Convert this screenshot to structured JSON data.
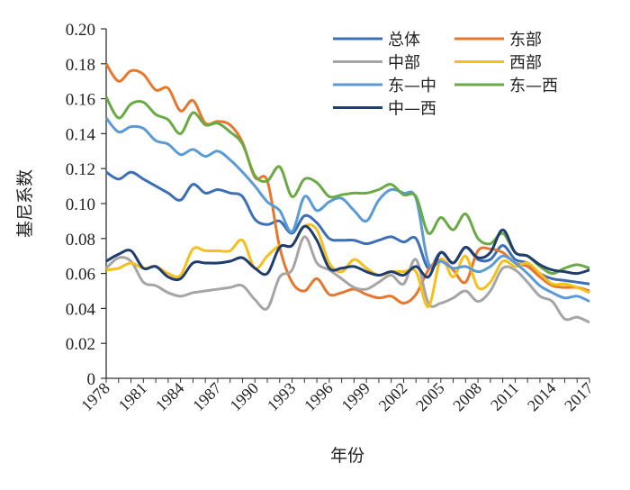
{
  "chart_data": {
    "type": "line",
    "title": "",
    "xlabel": "年份",
    "ylabel": "基尼系数",
    "ylim": [
      0,
      0.2
    ],
    "yticks": [
      "0",
      "0.02",
      "0.04",
      "0.06",
      "0.08",
      "0.10",
      "0.12",
      "0.14",
      "0.16",
      "0.18",
      "0.20"
    ],
    "xtick_labels": [
      "1978",
      "1981",
      "1984",
      "1987",
      "1990",
      "1993",
      "1996",
      "1999",
      "2002",
      "2005",
      "2008",
      "2011",
      "2014",
      "2017"
    ],
    "x": [
      1978,
      1979,
      1980,
      1981,
      1982,
      1983,
      1984,
      1985,
      1986,
      1987,
      1988,
      1989,
      1990,
      1991,
      1992,
      1993,
      1994,
      1995,
      1996,
      1997,
      1998,
      1999,
      2000,
      2001,
      2002,
      2003,
      2004,
      2005,
      2006,
      2007,
      2008,
      2009,
      2010,
      2011,
      2012,
      2013,
      2014,
      2015,
      2016,
      2017
    ],
    "legend_position": "top-right",
    "series": [
      {
        "name": "总体",
        "color": "#3d6fb6",
        "values": [
          0.118,
          0.114,
          0.118,
          0.114,
          0.11,
          0.106,
          0.102,
          0.111,
          0.106,
          0.108,
          0.106,
          0.104,
          0.091,
          0.088,
          0.09,
          0.083,
          0.093,
          0.089,
          0.08,
          0.079,
          0.079,
          0.077,
          0.079,
          0.081,
          0.078,
          0.08,
          0.063,
          0.072,
          0.066,
          0.075,
          0.068,
          0.068,
          0.076,
          0.068,
          0.066,
          0.06,
          0.057,
          0.056,
          0.055,
          0.054
        ]
      },
      {
        "name": "东部",
        "color": "#e8772e",
        "values": [
          0.18,
          0.17,
          0.176,
          0.174,
          0.165,
          0.166,
          0.153,
          0.159,
          0.146,
          0.147,
          0.145,
          0.135,
          0.115,
          0.113,
          0.075,
          0.055,
          0.05,
          0.057,
          0.048,
          0.049,
          0.051,
          0.048,
          0.046,
          0.047,
          0.043,
          0.048,
          0.062,
          0.068,
          0.062,
          0.055,
          0.073,
          0.074,
          0.072,
          0.066,
          0.064,
          0.058,
          0.053,
          0.052,
          0.052,
          0.05
        ]
      },
      {
        "name": "中部",
        "color": "#a5a5a5",
        "values": [
          0.063,
          0.069,
          0.067,
          0.055,
          0.053,
          0.049,
          0.047,
          0.049,
          0.05,
          0.051,
          0.052,
          0.053,
          0.045,
          0.04,
          0.058,
          0.062,
          0.081,
          0.066,
          0.062,
          0.057,
          0.052,
          0.051,
          0.055,
          0.059,
          0.054,
          0.068,
          0.043,
          0.043,
          0.046,
          0.05,
          0.044,
          0.05,
          0.063,
          0.062,
          0.055,
          0.047,
          0.044,
          0.034,
          0.035,
          0.032
        ]
      },
      {
        "name": "西部",
        "color": "#f5bf1c",
        "values": [
          0.062,
          0.063,
          0.066,
          0.063,
          0.064,
          0.06,
          0.059,
          0.074,
          0.073,
          0.073,
          0.073,
          0.079,
          0.063,
          0.07,
          0.076,
          0.076,
          0.087,
          0.085,
          0.066,
          0.061,
          0.068,
          0.063,
          0.059,
          0.061,
          0.061,
          0.061,
          0.041,
          0.068,
          0.058,
          0.07,
          0.052,
          0.055,
          0.067,
          0.064,
          0.066,
          0.06,
          0.054,
          0.054,
          0.052,
          0.049
        ]
      },
      {
        "name": "东—中",
        "color": "#5b9bd5",
        "values": [
          0.149,
          0.141,
          0.144,
          0.143,
          0.136,
          0.134,
          0.128,
          0.131,
          0.127,
          0.13,
          0.125,
          0.118,
          0.11,
          0.101,
          0.096,
          0.084,
          0.104,
          0.096,
          0.101,
          0.103,
          0.096,
          0.09,
          0.102,
          0.108,
          0.106,
          0.103,
          0.066,
          0.067,
          0.063,
          0.064,
          0.061,
          0.064,
          0.07,
          0.066,
          0.06,
          0.053,
          0.049,
          0.046,
          0.047,
          0.044
        ]
      },
      {
        "name": "东—西",
        "color": "#6aaa45",
        "values": [
          0.161,
          0.149,
          0.157,
          0.158,
          0.151,
          0.148,
          0.14,
          0.152,
          0.145,
          0.146,
          0.141,
          0.134,
          0.116,
          0.113,
          0.121,
          0.104,
          0.114,
          0.112,
          0.104,
          0.105,
          0.106,
          0.106,
          0.108,
          0.111,
          0.105,
          0.104,
          0.083,
          0.092,
          0.085,
          0.094,
          0.08,
          0.077,
          0.083,
          0.072,
          0.07,
          0.064,
          0.06,
          0.063,
          0.065,
          0.063
        ]
      },
      {
        "name": "中—西",
        "color": "#1f3d6e",
        "values": [
          0.067,
          0.071,
          0.073,
          0.063,
          0.064,
          0.058,
          0.057,
          0.066,
          0.066,
          0.066,
          0.067,
          0.069,
          0.063,
          0.06,
          0.075,
          0.076,
          0.087,
          0.079,
          0.063,
          0.063,
          0.064,
          0.061,
          0.059,
          0.061,
          0.059,
          0.064,
          0.058,
          0.072,
          0.066,
          0.075,
          0.069,
          0.072,
          0.085,
          0.072,
          0.07,
          0.065,
          0.062,
          0.061,
          0.06,
          0.062
        ]
      }
    ]
  }
}
